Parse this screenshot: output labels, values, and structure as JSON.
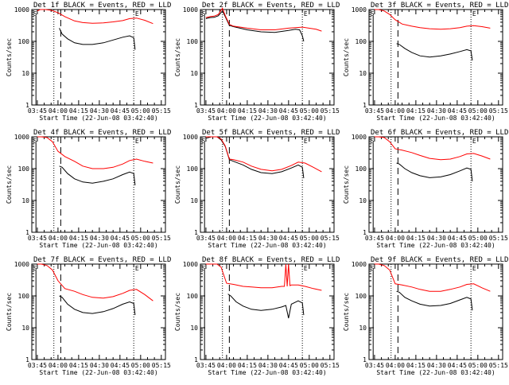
{
  "figure": {
    "title_template_prefix": "Det ",
    "title_suffix": " BLACK = Events, RED = LLD",
    "ylabel": "Counts/sec",
    "xlabel": "Start Time (22-Jun-08 03:42:40)",
    "x_ticks": [
      "03:45",
      "04:00",
      "04:15",
      "04:30",
      "04:45",
      "05:00",
      "05:15"
    ],
    "y_ticks": [
      "1",
      "10",
      "100",
      "1000"
    ],
    "marker_S": "S",
    "marker_E": "E",
    "colors": {
      "events": "#000000",
      "lld": "#ff0000",
      "axes": "#000000"
    }
  },
  "chart_data": [
    {
      "type": "line",
      "title": "Det 1f BLACK = Events, RED = LLD",
      "xlabel": "Start Time (22-Jun-08 03:42:40)",
      "ylabel": "Counts/sec",
      "ylim": [
        1,
        1000
      ],
      "yscale": "log",
      "x_minutes": [
        0,
        15,
        30,
        45,
        60,
        75,
        90
      ],
      "series": [
        {
          "name": "BLACK = Events",
          "x": [
            16,
            18,
            22,
            27,
            33,
            40,
            48,
            55,
            62,
            67,
            70,
            71
          ],
          "y": [
            260,
            170,
            120,
            90,
            80,
            80,
            90,
            110,
            135,
            150,
            130,
            55
          ]
        },
        {
          "name": "RED = LLD",
          "x": [
            0,
            2,
            6,
            10,
            15,
            20,
            27,
            33,
            40,
            48,
            55,
            62,
            67,
            72,
            78,
            84
          ],
          "y": [
            900,
            1000,
            1000,
            950,
            800,
            600,
            440,
            390,
            370,
            380,
            410,
            450,
            520,
            540,
            460,
            360
          ]
        }
      ]
    },
    {
      "type": "line",
      "title": "Det 2f BLACK = Events, RED = LLD",
      "xlabel": "Start Time (22-Jun-08 03:42:40)",
      "ylabel": "Counts/sec",
      "ylim": [
        1,
        1000
      ],
      "yscale": "log",
      "x_minutes": [
        0,
        15,
        30,
        45,
        60,
        75,
        90
      ],
      "series": [
        {
          "name": "BLACK = Events",
          "x": [
            0,
            3,
            6,
            9,
            12,
            14,
            17,
            20,
            30,
            40,
            50,
            60,
            65,
            68,
            70,
            71
          ],
          "y": [
            520,
            560,
            570,
            640,
            900,
            600,
            320,
            290,
            230,
            200,
            190,
            220,
            240,
            230,
            150,
            100
          ]
        },
        {
          "name": "RED = LLD",
          "x": [
            0,
            3,
            6,
            9,
            12,
            14,
            17,
            20,
            30,
            40,
            50,
            60,
            70,
            80,
            84
          ],
          "y": [
            560,
            600,
            620,
            700,
            1100,
            650,
            340,
            300,
            260,
            230,
            230,
            260,
            280,
            240,
            210
          ]
        }
      ]
    },
    {
      "type": "line",
      "title": "Det 3f BLACK = Events, RED = LLD",
      "xlabel": "Start Time (22-Jun-08 03:42:40)",
      "ylabel": "Counts/sec",
      "ylim": [
        1,
        1000
      ],
      "yscale": "log",
      "x_minutes": [
        0,
        15,
        30,
        45,
        60,
        75,
        90
      ],
      "series": [
        {
          "name": "BLACK = Events",
          "x": [
            16,
            18,
            22,
            27,
            33,
            40,
            48,
            55,
            62,
            67,
            70,
            71
          ],
          "y": [
            85,
            80,
            60,
            45,
            35,
            32,
            35,
            40,
            48,
            55,
            50,
            25
          ]
        },
        {
          "name": "RED = LLD",
          "x": [
            0,
            3,
            7,
            11,
            15,
            20,
            27,
            33,
            40,
            48,
            55,
            62,
            67,
            72,
            78,
            84
          ],
          "y": [
            1000,
            1000,
            900,
            700,
            480,
            350,
            300,
            270,
            250,
            240,
            250,
            270,
            300,
            310,
            290,
            260
          ]
        }
      ]
    },
    {
      "type": "line",
      "title": "Det 4f BLACK = Events, RED = LLD",
      "xlabel": "Start Time (22-Jun-08 03:42:40)",
      "ylabel": "Counts/sec",
      "ylim": [
        1,
        1000
      ],
      "yscale": "log",
      "x_minutes": [
        0,
        15,
        30,
        45,
        60,
        75,
        90
      ],
      "series": [
        {
          "name": "BLACK = Events",
          "x": [
            16,
            18,
            22,
            27,
            33,
            40,
            48,
            55,
            62,
            67,
            70,
            71
          ],
          "y": [
            120,
            110,
            70,
            48,
            38,
            35,
            40,
            48,
            65,
            78,
            70,
            30
          ]
        },
        {
          "name": "RED = LLD",
          "x": [
            0,
            3,
            7,
            11,
            15,
            20,
            27,
            33,
            40,
            48,
            55,
            62,
            67,
            72,
            78,
            84
          ],
          "y": [
            1000,
            1000,
            950,
            700,
            350,
            240,
            170,
            120,
            100,
            100,
            110,
            140,
            180,
            200,
            170,
            150
          ]
        }
      ]
    },
    {
      "type": "line",
      "title": "Det 5f BLACK = Events, RED = LLD",
      "xlabel": "Start Time (22-Jun-08 03:42:40)",
      "ylabel": "Counts/sec",
      "ylim": [
        1,
        1000
      ],
      "yscale": "log",
      "x_minutes": [
        0,
        15,
        30,
        45,
        60,
        75,
        90
      ],
      "series": [
        {
          "name": "BLACK = Events",
          "x": [
            0,
            4,
            8,
            11,
            14,
            17,
            20,
            27,
            33,
            40,
            48,
            55,
            62,
            67,
            70,
            71
          ],
          "y": [
            900,
            1000,
            1000,
            800,
            500,
            190,
            170,
            130,
            95,
            75,
            70,
            80,
            105,
            130,
            110,
            50
          ]
        },
        {
          "name": "RED = LLD",
          "x": [
            0,
            4,
            8,
            11,
            14,
            17,
            20,
            27,
            33,
            40,
            48,
            55,
            62,
            67,
            72,
            78,
            84
          ],
          "y": [
            1000,
            1000,
            1000,
            850,
            520,
            200,
            190,
            160,
            120,
            95,
            85,
            95,
            125,
            160,
            150,
            110,
            80
          ]
        }
      ]
    },
    {
      "type": "line",
      "title": "Det 6f BLACK = Events, RED = LLD",
      "xlabel": "Start Time (22-Jun-08 03:42:40)",
      "ylabel": "Counts/sec",
      "ylim": [
        1,
        1000
      ],
      "yscale": "log",
      "x_minutes": [
        0,
        15,
        30,
        45,
        60,
        75,
        90
      ],
      "series": [
        {
          "name": "BLACK = Events",
          "x": [
            16,
            18,
            22,
            27,
            33,
            40,
            48,
            55,
            62,
            67,
            70,
            71
          ],
          "y": [
            150,
            140,
            100,
            75,
            60,
            52,
            55,
            65,
            85,
            105,
            95,
            40
          ]
        },
        {
          "name": "RED = LLD",
          "x": [
            0,
            3,
            7,
            11,
            15,
            20,
            27,
            33,
            40,
            48,
            55,
            62,
            67,
            72,
            78,
            84
          ],
          "y": [
            1000,
            1000,
            950,
            700,
            420,
            380,
            320,
            260,
            210,
            190,
            200,
            240,
            290,
            300,
            250,
            200
          ]
        }
      ]
    },
    {
      "type": "line",
      "title": "Det 7f BLACK = Events, RED = LLD",
      "xlabel": "Start Time (22-Jun-08 03:42:40)",
      "ylabel": "Counts/sec",
      "ylim": [
        1,
        1000
      ],
      "yscale": "log",
      "x_minutes": [
        0,
        15,
        30,
        45,
        60,
        75,
        90
      ],
      "series": [
        {
          "name": "BLACK = Events",
          "x": [
            16,
            18,
            22,
            27,
            33,
            40,
            48,
            55,
            62,
            67,
            70,
            71
          ],
          "y": [
            100,
            90,
            55,
            38,
            30,
            28,
            32,
            40,
            55,
            65,
            58,
            25
          ]
        },
        {
          "name": "RED = LLD",
          "x": [
            0,
            3,
            7,
            11,
            15,
            20,
            27,
            33,
            40,
            48,
            55,
            62,
            67,
            72,
            78,
            84
          ],
          "y": [
            1000,
            1000,
            900,
            650,
            300,
            170,
            140,
            110,
            90,
            85,
            95,
            120,
            150,
            160,
            110,
            70
          ]
        }
      ]
    },
    {
      "type": "line",
      "title": "Det 8f BLACK = Events, RED = LLD",
      "xlabel": "Start Time (22-Jun-08 03:42:40)",
      "ylabel": "Counts/sec",
      "ylim": [
        1,
        1000
      ],
      "yscale": "log",
      "x_minutes": [
        0,
        15,
        30,
        45,
        60,
        75,
        90
      ],
      "series": [
        {
          "name": "BLACK = Events",
          "x": [
            16,
            18,
            22,
            27,
            33,
            40,
            48,
            55,
            58,
            60,
            62,
            67,
            70,
            71
          ],
          "y": [
            115,
            100,
            65,
            48,
            38,
            35,
            38,
            45,
            50,
            20,
            55,
            70,
            60,
            25
          ]
        },
        {
          "name": "RED = LLD",
          "x": [
            0,
            4,
            8,
            11,
            15,
            20,
            27,
            33,
            40,
            48,
            55,
            57,
            58,
            59,
            60,
            61,
            62,
            67,
            72,
            78,
            84
          ],
          "y": [
            1000,
            1000,
            1000,
            800,
            250,
            230,
            200,
            190,
            180,
            180,
            200,
            200,
            1000,
            200,
            1000,
            210,
            220,
            220,
            200,
            170,
            150
          ]
        }
      ]
    },
    {
      "type": "line",
      "title": "Det 9f BLACK = Events, RED = LLD",
      "xlabel": "Start Time (22-Jun-08 03:42:40)",
      "ylabel": "Counts/sec",
      "ylim": [
        1,
        1000
      ],
      "yscale": "log",
      "x_minutes": [
        0,
        15,
        30,
        45,
        60,
        75,
        90
      ],
      "series": [
        {
          "name": "BLACK = Events",
          "x": [
            16,
            18,
            22,
            27,
            33,
            40,
            48,
            55,
            62,
            67,
            70,
            71
          ],
          "y": [
            140,
            130,
            90,
            70,
            55,
            48,
            50,
            58,
            75,
            90,
            80,
            35
          ]
        },
        {
          "name": "RED = LLD",
          "x": [
            0,
            3,
            7,
            11,
            15,
            20,
            27,
            33,
            40,
            48,
            55,
            62,
            67,
            72,
            78,
            84
          ],
          "y": [
            1000,
            1000,
            900,
            650,
            240,
            220,
            190,
            160,
            140,
            140,
            160,
            190,
            230,
            240,
            180,
            140
          ]
        }
      ]
    }
  ]
}
